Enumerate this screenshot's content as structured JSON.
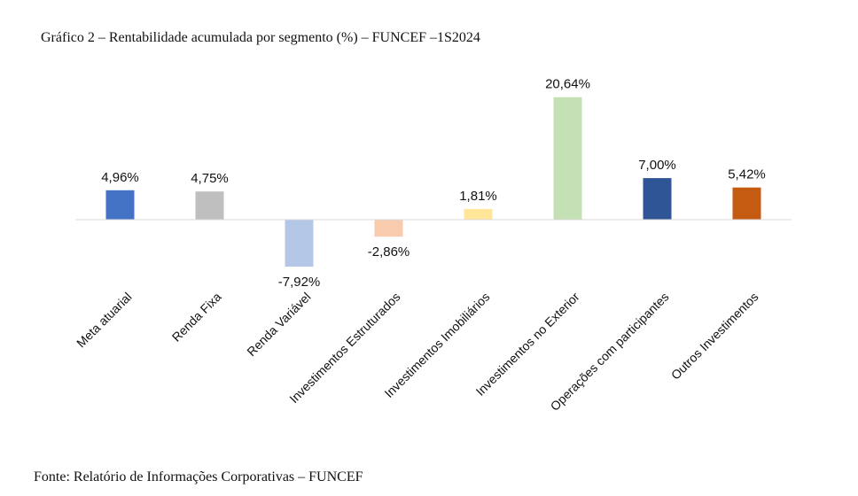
{
  "header": {
    "title": "Gráfico 2 – Rentabilidade acumulada por segmento (%) – FUNCEF –1S2024"
  },
  "footer": {
    "source": "Fonte: Relatório de Informações Corporativas – FUNCEF"
  },
  "chart_data": {
    "type": "bar",
    "categories": [
      "Meta atuarial",
      "Renda Fixa",
      "Renda Variável",
      "Investimentos Estruturados",
      "Investimentos Imobiliários",
      "Investimentos no Exterior",
      "Operações com participantes",
      "Outros Investimentos"
    ],
    "values": [
      4.96,
      4.75,
      -7.92,
      -2.86,
      1.81,
      20.64,
      7.0,
      5.42
    ],
    "data_labels": [
      "4,96%",
      "4,75%",
      "-7,92%",
      "-2,86%",
      "1,81%",
      "20,64%",
      "7,00%",
      "5,42%"
    ],
    "colors": [
      "#4472C4",
      "#BFBFBF",
      "#B4C7E7",
      "#F8CBAD",
      "#FFE699",
      "#C5E0B4",
      "#2F5597",
      "#C55A11"
    ],
    "ylim": [
      -7.92,
      20.64
    ],
    "grid": false,
    "legend": "none"
  }
}
